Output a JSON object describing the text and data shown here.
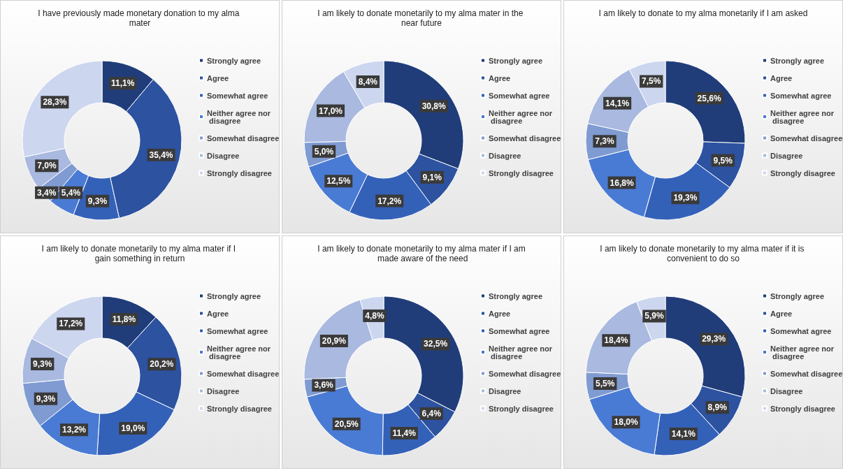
{
  "chart_data": [
    {
      "type": "donut",
      "title": "I have previously made monetary donation to my alma mater",
      "categories": [
        "Strongly agree",
        "Agree",
        "Somewhat agree",
        "Neither agree nor disagree",
        "Somewhat disagree",
        "Disagree",
        "Strongly disagree"
      ],
      "values": [
        11.1,
        35.4,
        9.3,
        5.4,
        3.4,
        7.0,
        28.3
      ],
      "value_labels": [
        "11,1%",
        "35,4%",
        "9,3%",
        "5,4%",
        "3,4%",
        "7,0%",
        "28,3%"
      ],
      "colors": [
        "#203d7a",
        "#2c52a0",
        "#3461b8",
        "#4a7bd4",
        "#7f9bd2",
        "#a9b9e0",
        "#cdd6ef"
      ],
      "legend": "right"
    },
    {
      "type": "donut",
      "title": "I am likely to donate monetarily to my alma mater in the near future",
      "categories": [
        "Strongly agree",
        "Agree",
        "Somewhat agree",
        "Neither agree nor disagree",
        "Somewhat disagree",
        "Disagree",
        "Strongly disagree"
      ],
      "values": [
        30.8,
        9.1,
        17.2,
        12.5,
        5.0,
        17.0,
        8.4
      ],
      "value_labels": [
        "30,8%",
        "9,1%",
        "17,2%",
        "12,5%",
        "5,0%",
        "17,0%",
        "8,4%"
      ],
      "colors": [
        "#203d7a",
        "#2c52a0",
        "#3461b8",
        "#4a7bd4",
        "#7f9bd2",
        "#a9b9e0",
        "#cdd6ef"
      ],
      "legend": "right"
    },
    {
      "type": "donut",
      "title": "I am likely to donate to my alma monetarily if I am asked",
      "categories": [
        "Strongly agree",
        "Agree",
        "Somewhat agree",
        "Neither agree nor disagree",
        "Somewhat disagree",
        "Disagree",
        "Strongly disagree"
      ],
      "values": [
        25.6,
        9.5,
        19.3,
        16.8,
        7.3,
        14.1,
        7.5
      ],
      "value_labels": [
        "25,6%",
        "9,5%",
        "19,3%",
        "16,8%",
        "7,3%",
        "14,1%",
        "7,5%"
      ],
      "colors": [
        "#203d7a",
        "#2c52a0",
        "#3461b8",
        "#4a7bd4",
        "#7f9bd2",
        "#a9b9e0",
        "#cdd6ef"
      ],
      "legend": "right"
    },
    {
      "type": "donut",
      "title": "I am likely to donate monetarily to my alma mater if I gain something in return",
      "categories": [
        "Strongly agree",
        "Agree",
        "Somewhat agree",
        "Neither agree nor disagree",
        "Somewhat disagree",
        "Disagree",
        "Strongly disagree"
      ],
      "values": [
        11.8,
        20.2,
        19.0,
        13.2,
        9.3,
        9.3,
        17.2
      ],
      "value_labels": [
        "11,8%",
        "20,2%",
        "19,0%",
        "13,2%",
        "9,3%",
        "9,3%",
        "17,2%"
      ],
      "colors": [
        "#203d7a",
        "#2c52a0",
        "#3461b8",
        "#4a7bd4",
        "#7f9bd2",
        "#a9b9e0",
        "#cdd6ef"
      ],
      "legend": "right"
    },
    {
      "type": "donut",
      "title": "I am likely to donate monetarily to my alma mater if I am made aware of the need",
      "categories": [
        "Strongly agree",
        "Agree",
        "Somewhat agree",
        "Neither agree nor disagree",
        "Somewhat disagree",
        "Disagree",
        "Strongly disagree"
      ],
      "values": [
        32.5,
        6.4,
        11.4,
        20.5,
        3.6,
        20.9,
        4.8
      ],
      "value_labels": [
        "32,5%",
        "6,4%",
        "11,4%",
        "20,5%",
        "3,6%",
        "20,9%",
        "4,8%"
      ],
      "colors": [
        "#203d7a",
        "#2c52a0",
        "#3461b8",
        "#4a7bd4",
        "#7f9bd2",
        "#a9b9e0",
        "#cdd6ef"
      ],
      "legend": "right"
    },
    {
      "type": "donut",
      "title": "I am likely to donate monetarily to my alma mater if it is convenient to do so",
      "categories": [
        "Strongly agree",
        "Agree",
        "Somewhat agree",
        "Neither agree nor disagree",
        "Somewhat disagree",
        "Disagree",
        "Strongly disagree"
      ],
      "values": [
        29.3,
        8.9,
        14.1,
        18.0,
        5.5,
        18.4,
        5.9
      ],
      "value_labels": [
        "29,3%",
        "8,9%",
        "14,1%",
        "18,0%",
        "5,5%",
        "18,4%",
        "5,9%"
      ],
      "colors": [
        "#203d7a",
        "#2c52a0",
        "#3461b8",
        "#4a7bd4",
        "#7f9bd2",
        "#a9b9e0",
        "#cdd6ef"
      ],
      "legend": "right"
    }
  ]
}
